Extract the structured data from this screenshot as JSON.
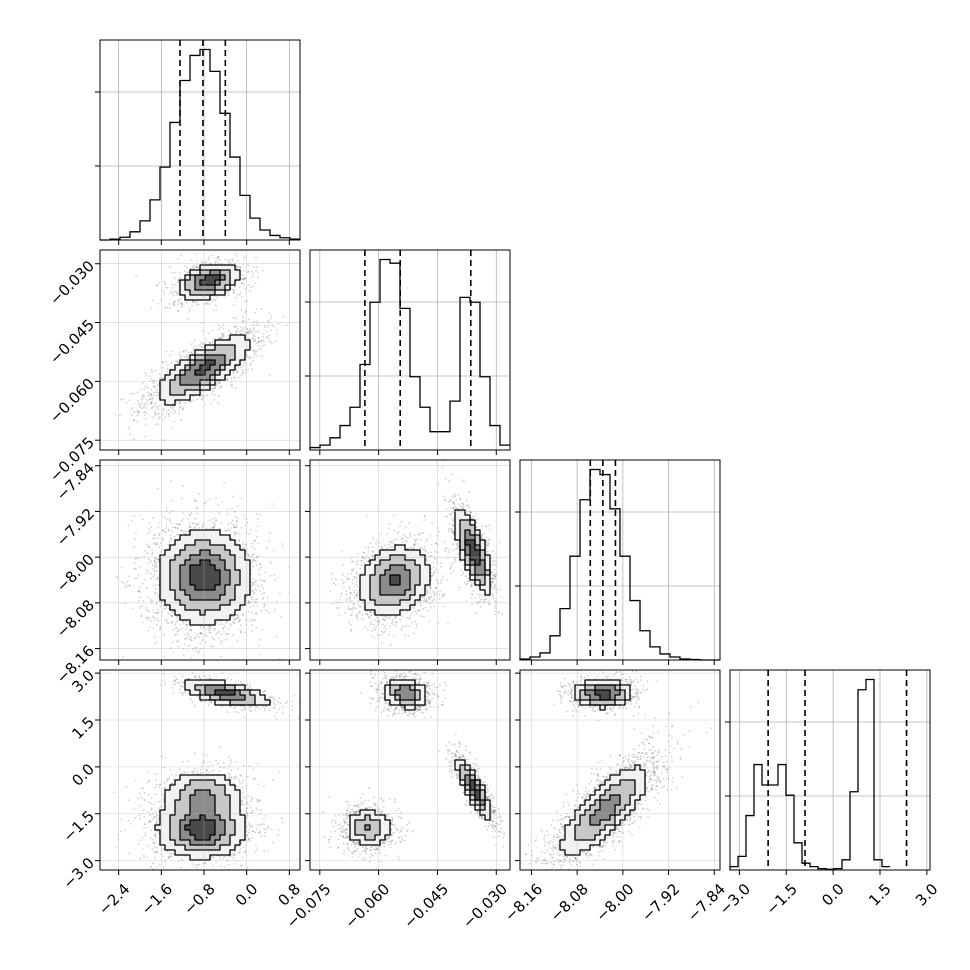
{
  "chart_data": {
    "type": "corner",
    "variables": [
      {
        "ticks": [
          -2.4,
          -1.6,
          -0.8,
          0.0,
          0.8
        ],
        "tick_labels": [
          "−2.4",
          "−1.6",
          "−0.8",
          "0.0",
          "0.8"
        ],
        "range": [
          -2.75,
          1.0
        ],
        "quantiles": [
          -1.25,
          -0.82,
          -0.4
        ],
        "histogram": {
          "edges_start": -2.75,
          "bin_width": 0.1875,
          "counts": [
            0,
            2,
            6,
            18,
            42,
            88,
            160,
            258,
            350,
            405,
            418,
            370,
            278,
            182,
            98,
            48,
            22,
            10,
            5,
            2
          ]
        }
      },
      {
        "ticks": [
          -0.075,
          -0.06,
          -0.045,
          -0.03
        ],
        "tick_labels": [
          "−0.075",
          "−0.060",
          "−0.045",
          "−0.030"
        ],
        "range": [
          -0.0775,
          -0.0265
        ],
        "quantiles": [
          -0.0635,
          -0.0545,
          -0.0365
        ],
        "histogram": {
          "edges_start": -0.0775,
          "bin_width": 0.00255,
          "counts": [
            4,
            8,
            20,
            40,
            70,
            140,
            242,
            312,
            306,
            232,
            120,
            70,
            30,
            30,
            80,
            250,
            242,
            120,
            40,
            8
          ]
        }
      },
      {
        "ticks": [
          -8.16,
          -8.08,
          -8.0,
          -7.92,
          -7.84
        ],
        "tick_labels": [
          "−8.16",
          "−8.08",
          "−8.00",
          "−7.92",
          "−7.84"
        ],
        "range": [
          -8.18,
          -7.83
        ],
        "quantiles": [
          -8.057,
          -8.035,
          -8.013
        ],
        "histogram": {
          "edges_start": -8.18,
          "bin_width": 0.0175,
          "counts": [
            2,
            6,
            14,
            48,
            102,
            206,
            318,
            378,
            368,
            300,
            206,
            118,
            58,
            26,
            12,
            6,
            2,
            1,
            0,
            0
          ]
        }
      },
      {
        "ticks": [
          -3.0,
          -1.5,
          0.0,
          1.5,
          3.0
        ],
        "tick_labels": [
          "−3.0",
          "−1.5",
          "0.0",
          "1.5",
          "3.0"
        ],
        "range": [
          -3.3,
          3.1
        ],
        "quantiles": [
          -2.08,
          -0.9,
          2.35
        ],
        "histogram": {
          "edges_start": -3.3,
          "bin_width": 0.256,
          "counts": [
            10,
            40,
            160,
            310,
            250,
            250,
            310,
            220,
            80,
            20,
            10,
            4,
            2,
            4,
            30,
            230,
            530,
            560,
            30,
            10
          ]
        }
      }
    ],
    "scatter_modes": {
      "1-0": [
        {
          "w": 0.35,
          "mx": -0.72,
          "my": -0.0345,
          "sx": 0.28,
          "sy": 0.0022,
          "rho": 0.4
        },
        {
          "w": 0.65,
          "mx": -0.82,
          "my": -0.057,
          "sx": 0.42,
          "sy": 0.0042,
          "rho": 0.75
        }
      ],
      "2-0": [
        {
          "w": 1.0,
          "mx": -0.8,
          "my": -8.035,
          "sx": 0.42,
          "sy": 0.04,
          "rho": 0.0
        }
      ],
      "2-1": [
        {
          "w": 0.65,
          "mx": -0.056,
          "my": -8.042,
          "sx": 0.0045,
          "sy": 0.03,
          "rho": 0.2
        },
        {
          "w": 0.35,
          "mx": -0.0358,
          "my": -7.99,
          "sx": 0.0023,
          "sy": 0.036,
          "rho": -0.7
        }
      ],
      "3-0": [
        {
          "w": 0.2,
          "mx": -0.4,
          "my": 2.35,
          "sx": 0.4,
          "sy": 0.22,
          "rho": -0.6
        },
        {
          "w": 0.26,
          "mx": -0.82,
          "my": -0.9,
          "sx": 0.38,
          "sy": 0.4,
          "rho": 0.0
        },
        {
          "w": 0.54,
          "mx": -0.85,
          "my": -2.0,
          "sx": 0.4,
          "sy": 0.45,
          "rho": 0.0
        }
      ],
      "3-1": [
        {
          "w": 0.33,
          "mx": -0.053,
          "my": 2.35,
          "sx": 0.0028,
          "sy": 0.24,
          "rho": -0.2
        },
        {
          "w": 0.35,
          "mx": -0.0357,
          "my": -0.7,
          "sx": 0.0022,
          "sy": 0.48,
          "rho": -0.85
        },
        {
          "w": 0.32,
          "mx": -0.0625,
          "my": -1.95,
          "sx": 0.003,
          "sy": 0.3,
          "rho": 0.0
        }
      ],
      "3-2": [
        {
          "w": 0.3,
          "mx": -8.035,
          "my": 2.35,
          "sx": 0.025,
          "sy": 0.22,
          "rho": 0.0
        },
        {
          "w": 0.7,
          "mx": -8.032,
          "my": -1.4,
          "sx": 0.04,
          "sy": 0.75,
          "rho": 0.78
        }
      ]
    }
  }
}
